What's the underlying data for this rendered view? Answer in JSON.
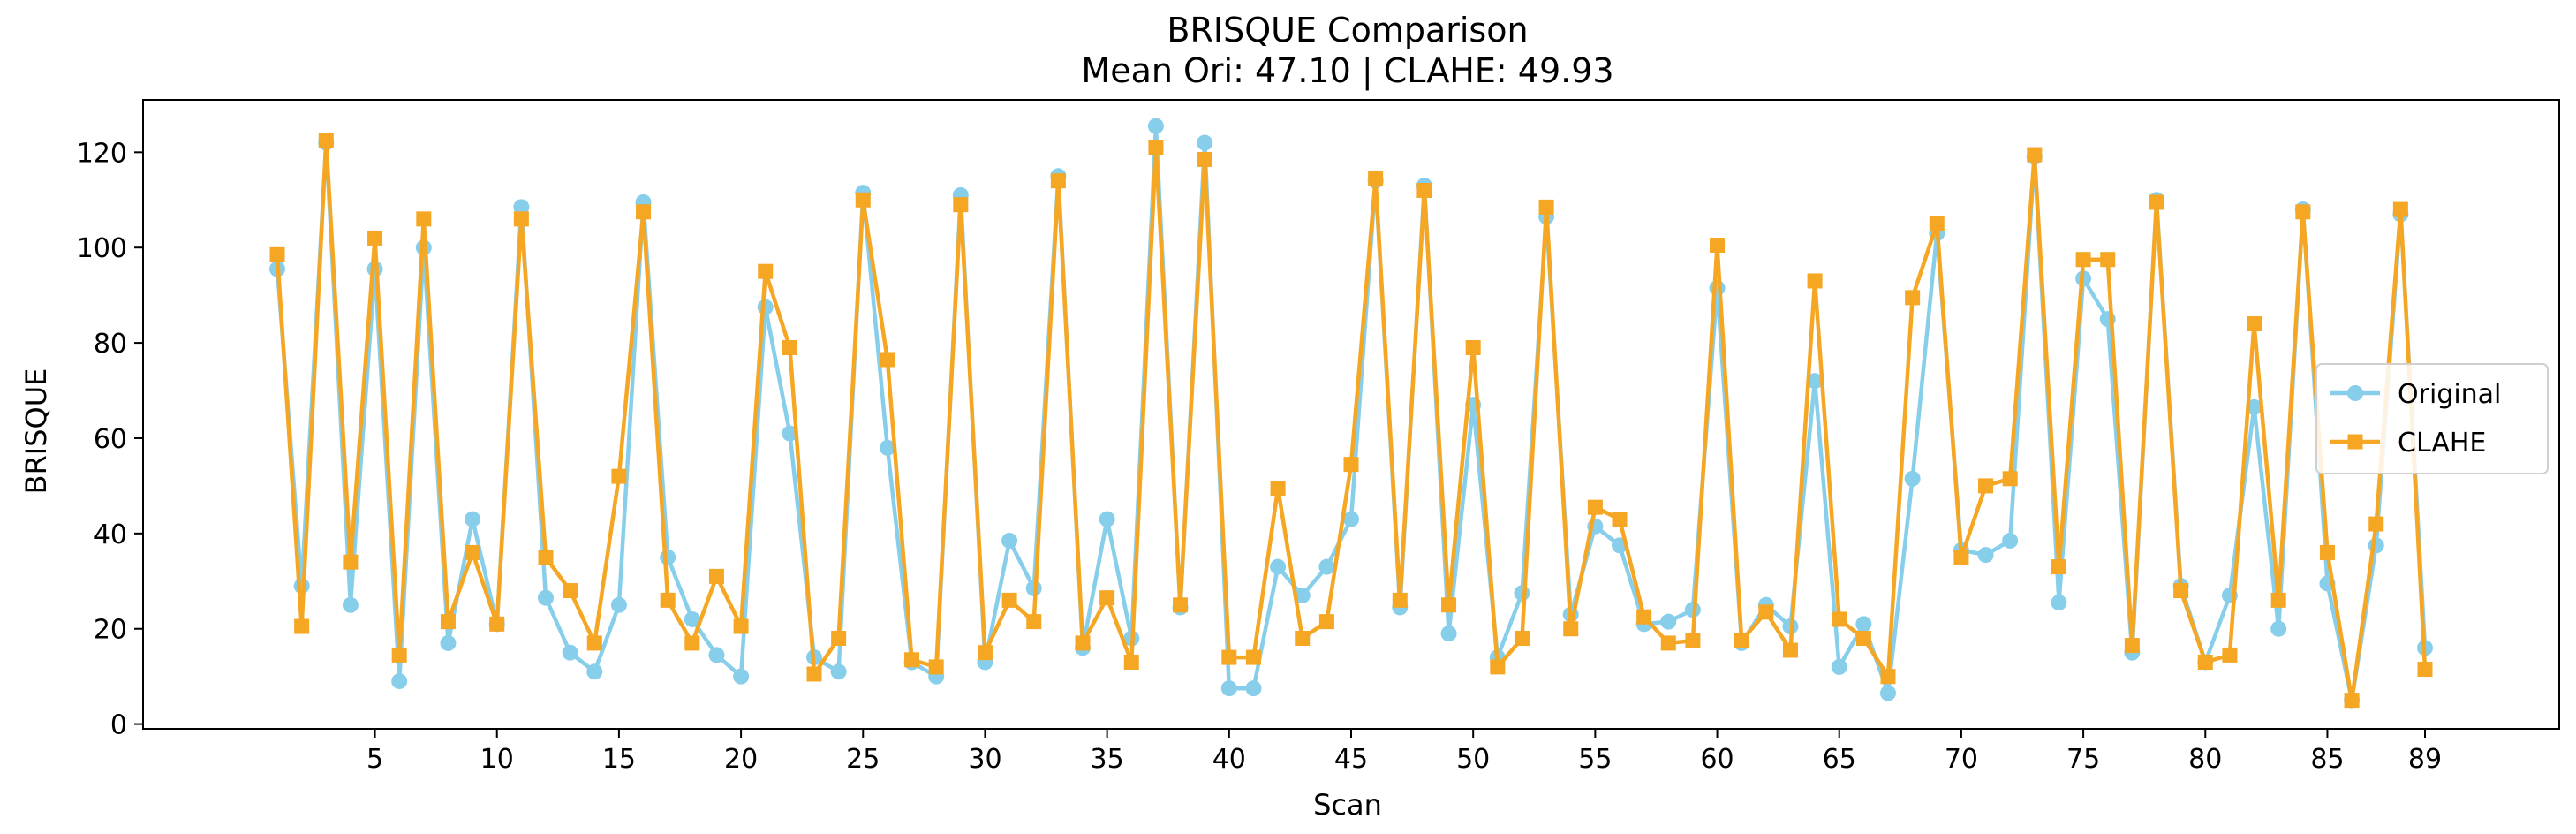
{
  "chart_data": {
    "type": "line",
    "title": "BRISQUE Comparison",
    "subtitle": "Mean Ori: 47.10 | CLAHE: 49.93",
    "xlabel": "Scan",
    "ylabel": "BRISQUE",
    "xlim": [
      -4.5,
      94.5
    ],
    "ylim": [
      -1,
      131
    ],
    "xticks": [
      5,
      10,
      15,
      20,
      25,
      30,
      35,
      40,
      45,
      50,
      55,
      60,
      65,
      70,
      75,
      80,
      85,
      89
    ],
    "yticks": [
      0,
      20,
      40,
      60,
      80,
      100,
      120
    ],
    "grid": false,
    "legend_position": "center-right",
    "x": [
      1,
      2,
      3,
      4,
      5,
      6,
      7,
      8,
      9,
      10,
      11,
      12,
      13,
      14,
      15,
      16,
      17,
      18,
      19,
      20,
      21,
      22,
      23,
      24,
      25,
      26,
      27,
      28,
      29,
      30,
      31,
      32,
      33,
      34,
      35,
      36,
      37,
      38,
      39,
      40,
      41,
      42,
      43,
      44,
      45,
      46,
      47,
      48,
      49,
      50,
      51,
      52,
      53,
      54,
      55,
      56,
      57,
      58,
      59,
      60,
      61,
      62,
      63,
      64,
      65,
      66,
      67,
      68,
      69,
      70,
      71,
      72,
      73,
      74,
      75,
      76,
      77,
      78,
      79,
      80,
      81,
      82,
      83,
      84,
      85,
      86,
      87,
      88,
      89
    ],
    "series": [
      {
        "name": "Original",
        "color": "#87CEEB",
        "marker": "circle",
        "values": [
          95.5,
          29,
          122,
          25,
          95.5,
          9,
          100,
          17,
          43,
          21,
          108.5,
          26.5,
          15,
          11,
          25,
          109.5,
          35,
          22,
          14.5,
          10,
          87.5,
          61,
          14,
          11,
          111.5,
          58,
          13,
          10,
          111,
          13,
          38.5,
          28.5,
          115,
          16,
          43,
          18,
          125.5,
          24.5,
          122,
          7.5,
          7.5,
          33,
          27,
          33,
          43,
          114,
          24.5,
          113,
          19,
          67,
          14,
          27.5,
          106.5,
          23,
          41.5,
          37.5,
          21,
          21.5,
          24,
          91.5,
          17,
          25,
          20.5,
          72,
          12,
          21,
          6.5,
          51.5,
          103,
          36.5,
          35.5,
          38.5,
          119,
          25.5,
          93.5,
          85,
          15,
          110,
          29,
          13,
          27,
          66.5,
          20,
          108,
          29.5,
          5,
          37.5,
          107,
          16
        ]
      },
      {
        "name": "CLAHE",
        "color": "#F5A623",
        "marker": "square",
        "values": [
          98.5,
          20.5,
          122.5,
          34,
          102,
          14.5,
          106,
          21.5,
          36,
          21,
          106,
          35,
          28,
          17,
          52,
          107.5,
          26,
          17,
          31,
          20.5,
          95,
          79,
          10.5,
          18,
          110,
          76.5,
          13.5,
          12,
          109,
          15,
          26,
          21.5,
          114,
          17,
          26.5,
          13,
          121,
          25,
          118.5,
          14,
          14,
          49.5,
          18,
          21.5,
          54.5,
          114.5,
          26,
          112,
          25,
          79,
          12,
          18,
          108.5,
          20,
          45.5,
          43,
          22.5,
          17,
          17.5,
          100.5,
          17.5,
          23.5,
          15.5,
          93,
          22,
          18,
          10,
          89.5,
          105,
          35,
          50,
          51.5,
          119.5,
          33,
          97.5,
          97.5,
          16.5,
          109.5,
          28,
          13,
          14.5,
          84,
          26,
          107.5,
          36,
          5,
          42,
          108,
          11.5
        ]
      }
    ]
  }
}
